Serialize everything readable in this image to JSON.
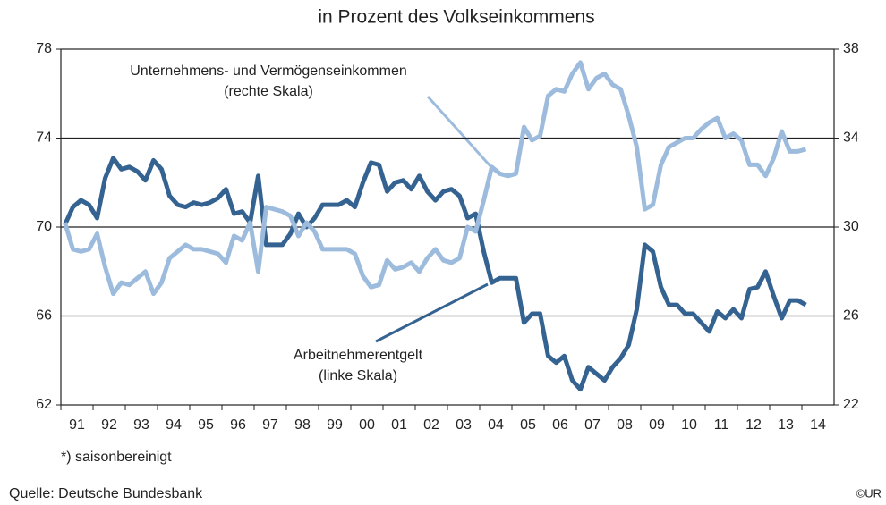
{
  "chart_data": {
    "type": "line",
    "title": "in Prozent des Volkseinkommens",
    "categories": [
      "91",
      null,
      null,
      null,
      "92",
      null,
      null,
      null,
      "93",
      null,
      null,
      null,
      "94",
      null,
      null,
      null,
      "95",
      null,
      null,
      null,
      "96",
      null,
      null,
      null,
      "97",
      null,
      null,
      null,
      "98",
      null,
      null,
      null,
      "99",
      null,
      null,
      null,
      "00",
      null,
      null,
      null,
      "01",
      null,
      null,
      null,
      "02",
      null,
      null,
      null,
      "03",
      null,
      null,
      null,
      "04",
      null,
      null,
      null,
      "05",
      null,
      null,
      null,
      "06",
      null,
      null,
      null,
      "07",
      null,
      null,
      null,
      "08",
      null,
      null,
      null,
      "09",
      null,
      null,
      null,
      "10",
      null,
      null,
      null,
      "11",
      null,
      null,
      null,
      "12",
      null,
      null,
      null,
      "13",
      null,
      null,
      null,
      "14"
    ],
    "series": [
      {
        "name": "Arbeitnehmerentgelt",
        "note": "(linke Skala)",
        "color": "#356391",
        "axis": "y",
        "values": [
          70.1,
          70.9,
          71.2,
          71.0,
          70.4,
          72.2,
          73.1,
          72.6,
          72.7,
          72.5,
          72.1,
          73.0,
          72.6,
          71.4,
          71.0,
          70.9,
          71.1,
          71.0,
          71.1,
          71.3,
          71.7,
          70.6,
          70.7,
          70.2,
          72.3,
          69.2,
          69.2,
          69.2,
          69.7,
          70.6,
          70.0,
          70.4,
          71.0,
          71.0,
          71.0,
          71.2,
          70.9,
          72.0,
          72.9,
          72.8,
          71.6,
          72.0,
          72.1,
          71.7,
          72.3,
          71.6,
          71.2,
          71.6,
          71.7,
          71.4,
          70.4,
          70.6,
          68.9,
          67.5,
          67.7,
          67.7,
          67.7,
          65.7,
          66.1,
          66.1,
          64.2,
          63.9,
          64.2,
          63.1,
          62.7,
          63.7,
          63.4,
          63.1,
          63.7,
          64.1,
          64.7,
          66.3,
          69.2,
          68.9,
          67.3,
          66.5,
          66.5,
          66.1,
          66.1,
          65.7,
          65.3,
          66.2,
          65.9,
          66.3,
          65.9,
          67.2,
          67.3,
          68.0,
          66.9,
          65.9,
          66.7,
          66.7,
          66.5
        ]
      },
      {
        "name": "Unternehmens- und Vermögenseinkommen",
        "note": "(rechte Skala)",
        "color": "#9dbcdd",
        "axis": "y2",
        "values": [
          30.2,
          29.0,
          28.9,
          29.0,
          29.7,
          28.2,
          27.0,
          27.5,
          27.4,
          27.7,
          28.0,
          27.0,
          27.5,
          28.6,
          28.9,
          29.2,
          29.0,
          29.0,
          28.9,
          28.8,
          28.4,
          29.6,
          29.4,
          30.2,
          28.0,
          30.9,
          30.8,
          30.7,
          30.5,
          29.6,
          30.2,
          29.8,
          29.0,
          29.0,
          29.0,
          29.0,
          28.8,
          27.8,
          27.3,
          27.4,
          28.5,
          28.1,
          28.2,
          28.4,
          28.0,
          28.6,
          29.0,
          28.5,
          28.4,
          28.6,
          30.0,
          29.8,
          31.2,
          32.7,
          32.4,
          32.3,
          32.4,
          34.5,
          33.9,
          34.1,
          35.9,
          36.2,
          36.1,
          36.9,
          37.4,
          36.2,
          36.7,
          36.9,
          36.4,
          36.2,
          35.0,
          33.6,
          30.8,
          31.0,
          32.8,
          33.6,
          33.8,
          34.0,
          34.0,
          34.4,
          34.7,
          34.9,
          34.0,
          34.2,
          33.9,
          32.8,
          32.8,
          32.3,
          33.1,
          34.3,
          33.4,
          33.4,
          33.5
        ]
      }
    ],
    "ylim": [
      62,
      78
    ],
    "yticks": [
      62,
      66,
      70,
      74,
      78
    ],
    "y2lim": [
      22,
      38
    ],
    "y2ticks": [
      22,
      26,
      30,
      34,
      38
    ],
    "grid": true,
    "footnote": "*) saisonbereinigt",
    "source": "Quelle: Deutsche Bundesbank",
    "credit": "©UR"
  }
}
